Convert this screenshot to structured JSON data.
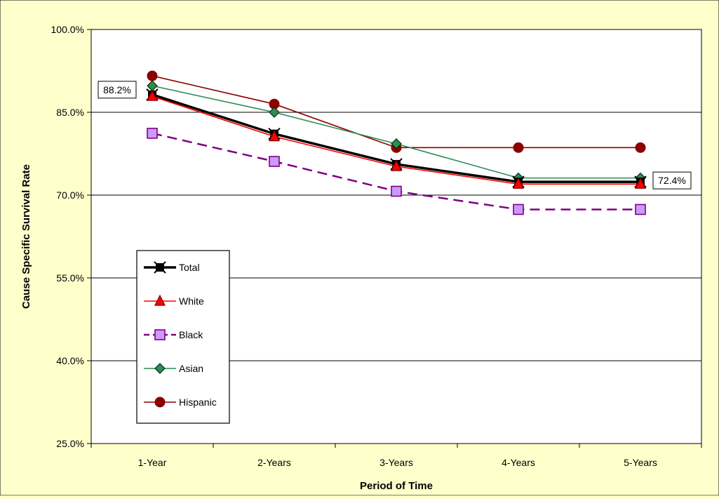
{
  "chart_data": {
    "type": "line",
    "categories": [
      "1-Year",
      "2-Years",
      "3-Years",
      "4-Years",
      "5-Years"
    ],
    "ylim": [
      25,
      100
    ],
    "yticks": [
      25,
      40,
      55,
      70,
      85,
      100
    ],
    "ytick_labels": [
      "25.0%",
      "40.0%",
      "55.0%",
      "70.0%",
      "85.0%",
      "100.0%"
    ],
    "xlabel": "Period of Time",
    "ylabel": "Cause Specific Survival Rate",
    "grid": true,
    "legend_position": "left",
    "series": [
      {
        "name": "Total",
        "values": [
          88.2,
          81.1,
          75.6,
          72.4,
          72.4
        ],
        "color": "#000000",
        "marker": "x-square",
        "dashed": false
      },
      {
        "name": "White",
        "values": [
          87.9,
          80.6,
          75.2,
          72.0,
          72.0
        ],
        "color": "#FF0000",
        "marker": "triangle",
        "dashed": false
      },
      {
        "name": "Black",
        "values": [
          81.2,
          76.1,
          70.7,
          67.4,
          67.4
        ],
        "color": "#800080",
        "marker": "square",
        "dashed": true
      },
      {
        "name": "Asian",
        "values": [
          89.8,
          85.0,
          79.3,
          73.1,
          73.1
        ],
        "color": "#2E8B57",
        "marker": "diamond",
        "dashed": false
      },
      {
        "name": "Hispanic",
        "values": [
          91.6,
          86.5,
          78.6,
          78.6,
          78.6
        ],
        "color": "#8B0000",
        "marker": "circle",
        "dashed": false
      }
    ],
    "annotations": [
      {
        "text": "88.2%",
        "series": "Total",
        "category": "1-Year"
      },
      {
        "text": "72.4%",
        "series": "Total",
        "category": "5-Years"
      }
    ]
  }
}
